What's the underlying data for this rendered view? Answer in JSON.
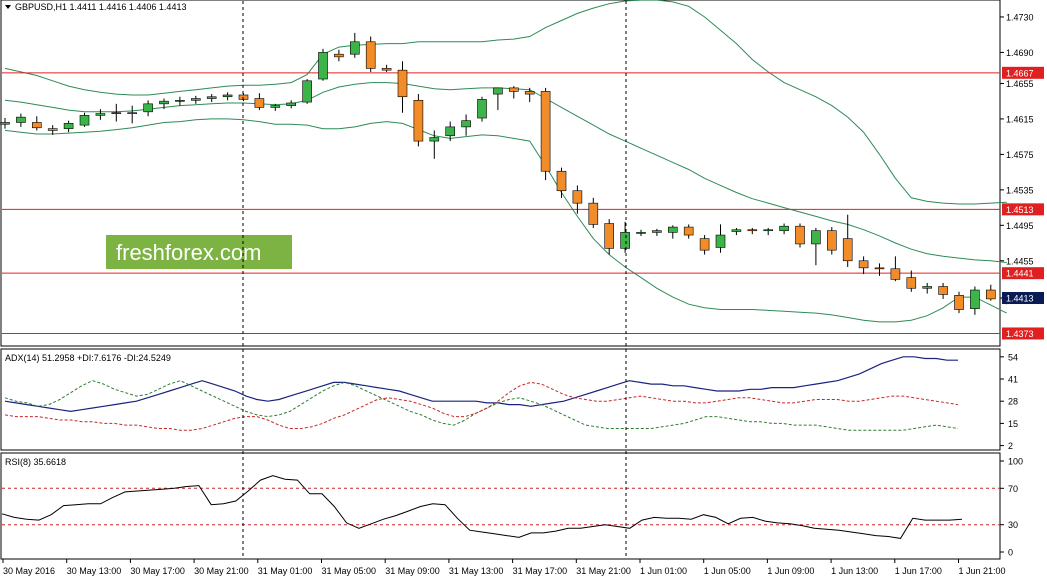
{
  "header": {
    "symbol_line": "GBPUSD,H1  1.4411 1.4416 1.4406 1.4413",
    "adx_line": "ADX(14) 51.2958 +DI:7.6176 -DI:24.5249",
    "rsi_line": "RSI(8) 35.6618"
  },
  "watermark": {
    "text": "freshforex.com",
    "bg_color": "#7cb342"
  },
  "colors": {
    "bull": "#3cb44a",
    "bear": "#f28c28",
    "bollinger": "#2e8b57",
    "hline": "#e02020",
    "price_tag": "#0a1a55",
    "adx": "#1a237e",
    "plus_di": "#2e7d32",
    "minus_di": "#c62828",
    "rsi": "#000000",
    "rsi_levels": "#c62828"
  },
  "chart_data": [
    {
      "type": "candlestick",
      "title": "GBPUSD,H1",
      "ylim": [
        1.436,
        1.4748
      ],
      "y_ticks": [
        "1.4730",
        "1.4690",
        "1.4655",
        "1.4615",
        "1.4575",
        "1.4535",
        "1.4495",
        "1.4455",
        "1.4413"
      ],
      "x_ticks": [
        "30 May 2016",
        "30 May 13:00",
        "30 May 17:00",
        "30 May 21:00",
        "31 May 01:00",
        "31 May 05:00",
        "31 May 09:00",
        "31 May 13:00",
        "31 May 17:00",
        "31 May 21:00",
        "1 Jun 01:00",
        "1 Jun 05:00",
        "1 Jun 09:00",
        "1 Jun 13:00",
        "1 Jun 17:00",
        "1 Jun 21:00"
      ],
      "horizontal_levels": [
        {
          "label": "1.4667",
          "value": 1.4667
        },
        {
          "label": "1.4513",
          "value": 1.4513
        },
        {
          "label": "1.4441",
          "value": 1.4441
        },
        {
          "label": "1.4373",
          "value": 1.4373
        }
      ],
      "current_price": {
        "label": "1.4413",
        "value": 1.4413
      },
      "candles": [
        [
          1.4609,
          1.4616,
          1.4604,
          1.4611
        ],
        [
          1.4611,
          1.4621,
          1.4606,
          1.4617
        ],
        [
          1.4611,
          1.4618,
          1.4602,
          1.4605
        ],
        [
          1.4604,
          1.4608,
          1.4597,
          1.4602
        ],
        [
          1.4604,
          1.4613,
          1.46,
          1.461
        ],
        [
          1.4608,
          1.4622,
          1.4606,
          1.4619
        ],
        [
          1.4619,
          1.4626,
          1.4614,
          1.4621
        ],
        [
          1.4621,
          1.4632,
          1.4612,
          1.4622
        ],
        [
          1.4622,
          1.463,
          1.461,
          1.4621
        ],
        [
          1.4623,
          1.4636,
          1.4618,
          1.4632
        ],
        [
          1.4632,
          1.4638,
          1.4626,
          1.4635
        ],
        [
          1.4635,
          1.464,
          1.463,
          1.4636
        ],
        [
          1.4636,
          1.4641,
          1.4632,
          1.4638
        ],
        [
          1.4638,
          1.4643,
          1.4634,
          1.464
        ],
        [
          1.464,
          1.4645,
          1.4636,
          1.4642
        ],
        [
          1.4642,
          1.4644,
          1.4635,
          1.4637
        ],
        [
          1.4638,
          1.4644,
          1.4625,
          1.4628
        ],
        [
          1.4628,
          1.4632,
          1.4624,
          1.463
        ],
        [
          1.463,
          1.4636,
          1.4627,
          1.4633
        ],
        [
          1.4634,
          1.466,
          1.4632,
          1.4658
        ],
        [
          1.466,
          1.4694,
          1.4658,
          1.469
        ],
        [
          1.4688,
          1.4693,
          1.468,
          1.4685
        ],
        [
          1.4688,
          1.4712,
          1.4684,
          1.4702
        ],
        [
          1.4702,
          1.4708,
          1.4668,
          1.4672
        ],
        [
          1.4672,
          1.4676,
          1.4668,
          1.467
        ],
        [
          1.467,
          1.468,
          1.4622,
          1.464
        ],
        [
          1.4636,
          1.4643,
          1.4584,
          1.459
        ],
        [
          1.459,
          1.4602,
          1.457,
          1.4594
        ],
        [
          1.4596,
          1.4612,
          1.459,
          1.4606
        ],
        [
          1.4606,
          1.462,
          1.4596,
          1.4613
        ],
        [
          1.4616,
          1.464,
          1.4612,
          1.4637
        ],
        [
          1.4643,
          1.465,
          1.4625,
          1.465
        ],
        [
          1.465,
          1.4652,
          1.4638,
          1.4646
        ],
        [
          1.4646,
          1.465,
          1.4634,
          1.4643
        ],
        [
          1.4646,
          1.465,
          1.4546,
          1.4556
        ],
        [
          1.4556,
          1.456,
          1.4526,
          1.4534
        ],
        [
          1.4534,
          1.454,
          1.4508,
          1.452
        ],
        [
          1.452,
          1.4526,
          1.4492,
          1.4496
        ],
        [
          1.4497,
          1.4502,
          1.4462,
          1.4469
        ],
        [
          1.4469,
          1.4499,
          1.4464,
          1.4487
        ],
        [
          1.4486,
          1.449,
          1.4483,
          1.4487
        ],
        [
          1.4487,
          1.4491,
          1.4483,
          1.4489
        ],
        [
          1.4487,
          1.4495,
          1.448,
          1.4493
        ],
        [
          1.4493,
          1.4496,
          1.448,
          1.4484
        ],
        [
          1.448,
          1.4484,
          1.4462,
          1.4467
        ],
        [
          1.447,
          1.4496,
          1.4464,
          1.4484
        ],
        [
          1.4488,
          1.4492,
          1.4484,
          1.449
        ],
        [
          1.449,
          1.4492,
          1.4485,
          1.4489
        ],
        [
          1.4489,
          1.4492,
          1.4484,
          1.449
        ],
        [
          1.4489,
          1.4497,
          1.4485,
          1.4494
        ],
        [
          1.4494,
          1.4497,
          1.447,
          1.4474
        ],
        [
          1.4474,
          1.4492,
          1.445,
          1.4489
        ],
        [
          1.4489,
          1.4493,
          1.4462,
          1.4467
        ],
        [
          1.448,
          1.4507,
          1.4448,
          1.4455
        ],
        [
          1.4455,
          1.446,
          1.444,
          1.4447
        ],
        [
          1.4447,
          1.4452,
          1.4438,
          1.4446
        ],
        [
          1.4446,
          1.446,
          1.4432,
          1.4434
        ],
        [
          1.4436,
          1.4444,
          1.442,
          1.4424
        ],
        [
          1.4424,
          1.443,
          1.4418,
          1.4426
        ],
        [
          1.4426,
          1.443,
          1.4412,
          1.4417
        ],
        [
          1.4416,
          1.442,
          1.4396,
          1.44
        ],
        [
          1.4401,
          1.4426,
          1.4394,
          1.4422
        ],
        [
          1.4422,
          1.4428,
          1.441,
          1.4412
        ],
        [
          1.4411,
          1.4416,
          1.4406,
          1.4413
        ]
      ],
      "bollinger": {
        "upper": [
          1.4672,
          1.4668,
          1.4664,
          1.4658,
          1.4652,
          1.4648,
          1.4645,
          1.4643,
          1.4642,
          1.4642,
          1.4644,
          1.4646,
          1.4648,
          1.465,
          1.4652,
          1.4653,
          1.4653,
          1.4654,
          1.4656,
          1.4665,
          1.4688,
          1.4696,
          1.4698,
          1.4699,
          1.47,
          1.47,
          1.4702,
          1.4702,
          1.4702,
          1.4702,
          1.4702,
          1.4704,
          1.4705,
          1.4708,
          1.4718,
          1.4726,
          1.4734,
          1.474,
          1.4745,
          1.4748,
          1.4749,
          1.4749,
          1.4747,
          1.4742,
          1.473,
          1.4715,
          1.47,
          1.4682,
          1.4668,
          1.4656,
          1.4648,
          1.464,
          1.463,
          1.4617,
          1.46,
          1.4575,
          1.4548,
          1.4526,
          1.4522,
          1.452,
          1.4519,
          1.4519,
          1.452,
          1.4521
        ],
        "middle": [
          1.4636,
          1.4634,
          1.4631,
          1.4628,
          1.4625,
          1.4623,
          1.4623,
          1.4623,
          1.4624,
          1.4626,
          1.4628,
          1.463,
          1.4631,
          1.4632,
          1.4633,
          1.4633,
          1.4632,
          1.4631,
          1.4632,
          1.4636,
          1.4645,
          1.4651,
          1.4654,
          1.4656,
          1.4656,
          1.4655,
          1.4652,
          1.4649,
          1.4648,
          1.4649,
          1.465,
          1.465,
          1.4649,
          1.4648,
          1.4638,
          1.4628,
          1.4618,
          1.4608,
          1.4598,
          1.459,
          1.4582,
          1.4574,
          1.4566,
          1.4558,
          1.4548,
          1.454,
          1.4532,
          1.4525,
          1.452,
          1.4515,
          1.451,
          1.4505,
          1.45,
          1.4496,
          1.449,
          1.4483,
          1.4475,
          1.4468,
          1.4463,
          1.446,
          1.4458,
          1.4456,
          1.4455,
          1.4453
        ],
        "lower": [
          1.4602,
          1.46,
          1.4598,
          1.4598,
          1.4599,
          1.46,
          1.4601,
          1.4603,
          1.4605,
          1.4608,
          1.4611,
          1.4612,
          1.4614,
          1.4615,
          1.4615,
          1.4614,
          1.4612,
          1.4609,
          1.4609,
          1.4608,
          1.4604,
          1.4604,
          1.4606,
          1.461,
          1.4612,
          1.461,
          1.4603,
          1.4596,
          1.4593,
          1.4595,
          1.4597,
          1.4596,
          1.4593,
          1.459,
          1.4562,
          1.4532,
          1.4505,
          1.448,
          1.4462,
          1.4448,
          1.4436,
          1.4424,
          1.4414,
          1.4406,
          1.4402,
          1.44,
          1.44,
          1.44,
          1.4399,
          1.4398,
          1.4397,
          1.4396,
          1.4394,
          1.4391,
          1.4388,
          1.4386,
          1.4386,
          1.4388,
          1.4393,
          1.4402,
          1.4414,
          1.4414,
          1.4405,
          1.4396
        ]
      }
    },
    {
      "type": "line",
      "title": "ADX(14) 51.2958 +DI:7.6176 -DI:24.5249",
      "ylim": [
        0,
        58
      ],
      "y_ticks": [
        54,
        41,
        28,
        15,
        2
      ],
      "series": [
        {
          "name": "ADX",
          "values": [
            28,
            27,
            26,
            25,
            24,
            23,
            22,
            23,
            24,
            25,
            26,
            27,
            28,
            30,
            32,
            34,
            36,
            38,
            40,
            38,
            36,
            34,
            31,
            29,
            28,
            29,
            31,
            33,
            35,
            37,
            39,
            39,
            38,
            37,
            36,
            35,
            34,
            32,
            30,
            28,
            28,
            28,
            28,
            28,
            27,
            27,
            26,
            26,
            25,
            26,
            27,
            28,
            30,
            32,
            34,
            36,
            38,
            40,
            39,
            38,
            38,
            37,
            37,
            36,
            35,
            34,
            34,
            34,
            35,
            35,
            36,
            36,
            36,
            37,
            38,
            39,
            40,
            42,
            44,
            47,
            50,
            52,
            54,
            54,
            53,
            53,
            52,
            52
          ]
        },
        {
          "name": "+DI",
          "values": [
            30,
            28,
            27,
            25,
            26,
            29,
            33,
            37,
            40,
            38,
            35,
            33,
            31,
            32,
            35,
            38,
            40,
            37,
            34,
            31,
            28,
            25,
            22,
            20,
            19,
            20,
            22,
            26,
            30,
            34,
            37,
            39,
            37,
            34,
            31,
            28,
            25,
            22,
            20,
            17,
            15,
            14,
            17,
            21,
            24,
            27,
            29,
            30,
            28,
            26,
            23,
            20,
            17,
            14,
            13,
            12,
            12,
            12,
            12,
            12,
            13,
            14,
            15,
            17,
            19,
            19,
            18,
            17,
            16,
            16,
            15,
            15,
            14,
            14,
            14,
            13,
            12,
            11,
            11,
            11,
            11,
            11,
            11,
            12,
            13,
            14,
            13,
            12
          ]
        },
        {
          "name": "-DI",
          "values": [
            20,
            19,
            19,
            19,
            18,
            17,
            17,
            16,
            16,
            15,
            15,
            14,
            14,
            13,
            12,
            12,
            11,
            11,
            12,
            14,
            16,
            18,
            19,
            19,
            17,
            14,
            12,
            12,
            13,
            15,
            18,
            20,
            23,
            26,
            29,
            30,
            29,
            28,
            26,
            24,
            21,
            19,
            19,
            21,
            24,
            28,
            33,
            37,
            39,
            38,
            35,
            32,
            30,
            29,
            28,
            28,
            29,
            30,
            31,
            30,
            29,
            28,
            28,
            27,
            27,
            28,
            29,
            30,
            30,
            29,
            28,
            27,
            27,
            28,
            29,
            29,
            29,
            28,
            28,
            29,
            30,
            31,
            31,
            30,
            29,
            28,
            27,
            26
          ]
        }
      ]
    },
    {
      "type": "line",
      "title": "RSI(8) 35.6618",
      "ylim": [
        0,
        100
      ],
      "y_ticks": [
        100,
        70,
        30,
        0
      ],
      "levels": [
        70,
        30
      ],
      "series": [
        {
          "name": "RSI(8)",
          "values": [
            42,
            38,
            36,
            35,
            41,
            51,
            52,
            53,
            53,
            60,
            66,
            67,
            68,
            69,
            70,
            72,
            73,
            52,
            53,
            56,
            67,
            79,
            84,
            80,
            79,
            64,
            64,
            50,
            32,
            26,
            31,
            36,
            40,
            45,
            50,
            53,
            52,
            37,
            24,
            22,
            20,
            18,
            16,
            21,
            21,
            23,
            26,
            26,
            28,
            30,
            28,
            26,
            35,
            38,
            37,
            37,
            36,
            41,
            38,
            31,
            37,
            38,
            34,
            32,
            31,
            29,
            26,
            25,
            24,
            22,
            20,
            18,
            17,
            15,
            37,
            35,
            35,
            35,
            36
          ]
        }
      ]
    }
  ]
}
